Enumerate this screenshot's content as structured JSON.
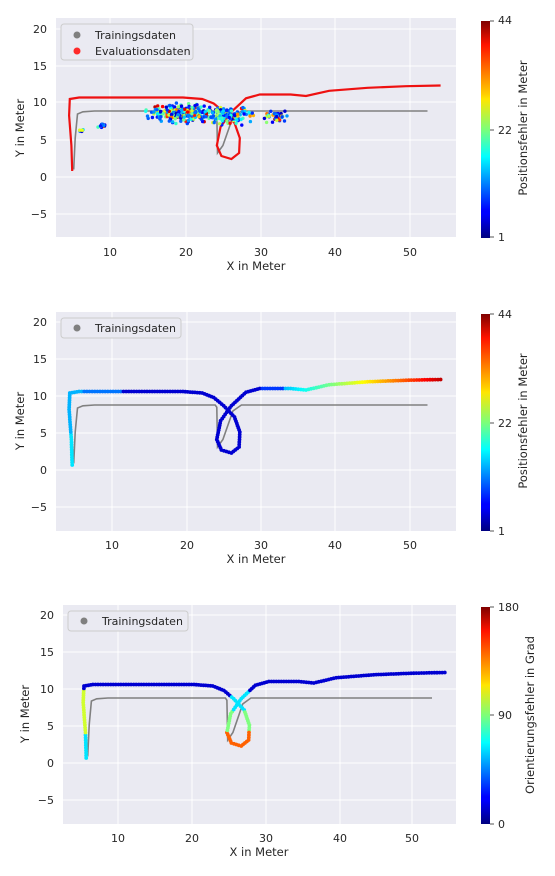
{
  "chart_data": [
    {
      "type": "scatter",
      "xlabel": "X in Meter",
      "ylabel": "Y in Meter",
      "xlim": [
        3.5,
        55.5
      ],
      "ylim": [
        -8.2,
        21.0
      ],
      "xticks": [
        "10",
        "20",
        "30",
        "40",
        "50"
      ],
      "yticks": [
        "20",
        "15",
        "10",
        "5",
        "0",
        "−5"
      ],
      "grid": true,
      "legend_position": "top-left",
      "legend": [
        {
          "label": "Trainingsdaten",
          "color": "#808080"
        },
        {
          "label": "Evaluationsdaten",
          "color": "#ff2a2a"
        }
      ],
      "colorbar": {
        "label": "Positionsfehler in Meter",
        "min": 1,
        "max": 44,
        "ticks": [
          "44",
          "22",
          "1"
        ]
      },
      "training_path": [
        [
          5.8,
          0.8
        ],
        [
          6.0,
          5.0
        ],
        [
          6.3,
          8.2
        ],
        [
          7.0,
          8.5
        ],
        [
          8.5,
          8.6
        ],
        [
          20,
          8.6
        ],
        [
          24.2,
          8.6
        ],
        [
          24.4,
          8.3
        ],
        [
          24.5,
          3.0
        ],
        [
          25.2,
          4.0
        ],
        [
          26.5,
          7.8
        ],
        [
          27.6,
          8.6
        ],
        [
          33,
          8.6
        ],
        [
          45,
          8.6
        ],
        [
          51.8,
          8.6
        ]
      ],
      "evaluation_path": [
        [
          5.6,
          0.6
        ],
        [
          5.5,
          4.0
        ],
        [
          5.2,
          8.0
        ],
        [
          5.3,
          10.2
        ],
        [
          6.5,
          10.4
        ],
        [
          15,
          10.4
        ],
        [
          20,
          10.4
        ],
        [
          22.5,
          10.2
        ],
        [
          24,
          9.6
        ],
        [
          25.3,
          8.5
        ],
        [
          26.7,
          7.0
        ],
        [
          27.4,
          5.0
        ],
        [
          27.3,
          3.0
        ],
        [
          26.3,
          2.2
        ],
        [
          25.0,
          2.6
        ],
        [
          24.4,
          4.0
        ],
        [
          24.9,
          6.5
        ],
        [
          26.3,
          8.5
        ],
        [
          28.2,
          10.3
        ],
        [
          30,
          10.8
        ],
        [
          34,
          10.8
        ],
        [
          36,
          10.6
        ],
        [
          39,
          11.3
        ],
        [
          44,
          11.7
        ],
        [
          49,
          11.9
        ],
        [
          53.5,
          12.0
        ]
      ]
    },
    {
      "type": "scatter",
      "xlabel": "X in Meter",
      "ylabel": "Y in Meter",
      "xlim": [
        3.5,
        55.5
      ],
      "ylim": [
        -8.2,
        21.0
      ],
      "xticks": [
        "10",
        "20",
        "30",
        "40",
        "50"
      ],
      "yticks": [
        "20",
        "15",
        "10",
        "5",
        "0",
        "−5"
      ],
      "grid": true,
      "legend_position": "top-left",
      "legend": [
        {
          "label": "Trainingsdaten",
          "color": "#808080"
        }
      ],
      "colorbar": {
        "label": "Positionsfehler in Meter",
        "min": 1,
        "max": 44,
        "ticks": [
          "44",
          "22",
          "1"
        ]
      },
      "training_path": [
        [
          5.8,
          0.8
        ],
        [
          6.0,
          5.0
        ],
        [
          6.3,
          8.2
        ],
        [
          7.0,
          8.5
        ],
        [
          8.5,
          8.6
        ],
        [
          20,
          8.6
        ],
        [
          24.2,
          8.6
        ],
        [
          24.4,
          8.3
        ],
        [
          24.5,
          3.0
        ],
        [
          25.2,
          4.0
        ],
        [
          26.5,
          7.8
        ],
        [
          27.6,
          8.6
        ],
        [
          33,
          8.6
        ],
        [
          45,
          8.6
        ],
        [
          51.8,
          8.6
        ]
      ],
      "prediction_path": [
        [
          5.6,
          0.6
        ],
        [
          5.5,
          4.0
        ],
        [
          5.2,
          8.0
        ],
        [
          5.3,
          10.2
        ],
        [
          6.5,
          10.4
        ],
        [
          15,
          10.4
        ],
        [
          20,
          10.4
        ],
        [
          22.5,
          10.2
        ],
        [
          24,
          9.6
        ],
        [
          25.3,
          8.5
        ],
        [
          26.7,
          7.0
        ],
        [
          27.4,
          5.0
        ],
        [
          27.3,
          3.0
        ],
        [
          26.3,
          2.2
        ],
        [
          25.0,
          2.6
        ],
        [
          24.4,
          4.0
        ],
        [
          24.9,
          6.5
        ],
        [
          26.3,
          8.5
        ],
        [
          28.2,
          10.3
        ],
        [
          30,
          10.8
        ],
        [
          34,
          10.8
        ],
        [
          36,
          10.6
        ],
        [
          39,
          11.3
        ],
        [
          44,
          11.7
        ],
        [
          49,
          11.9
        ],
        [
          53.5,
          12.0
        ]
      ]
    },
    {
      "type": "scatter",
      "xlabel": "X in Meter",
      "ylabel": "Y in Meter",
      "xlim": [
        2.5,
        55.0
      ],
      "ylim": [
        -8.2,
        21.0
      ],
      "xticks": [
        "10",
        "20",
        "30",
        "40",
        "50"
      ],
      "yticks": [
        "20",
        "15",
        "10",
        "5",
        "0",
        "−5"
      ],
      "grid": true,
      "legend_position": "top-left",
      "legend": [
        {
          "label": "Trainingsdaten",
          "color": "#808080"
        }
      ],
      "colorbar": {
        "label": "Orientierungsfehler in Grad",
        "min": 0,
        "max": 180,
        "ticks": [
          "180",
          "90",
          "0"
        ]
      },
      "training_path": [
        [
          5.8,
          0.8
        ],
        [
          6.0,
          5.0
        ],
        [
          6.3,
          8.2
        ],
        [
          7.0,
          8.5
        ],
        [
          8.5,
          8.6
        ],
        [
          20,
          8.6
        ],
        [
          24.2,
          8.6
        ],
        [
          24.4,
          8.3
        ],
        [
          24.5,
          3.0
        ],
        [
          25.2,
          4.0
        ],
        [
          26.5,
          7.8
        ],
        [
          27.6,
          8.6
        ],
        [
          33,
          8.6
        ],
        [
          45,
          8.6
        ],
        [
          51.8,
          8.6
        ]
      ],
      "prediction_path": [
        [
          5.6,
          0.6
        ],
        [
          5.5,
          4.0
        ],
        [
          5.2,
          8.0
        ],
        [
          5.3,
          10.2
        ],
        [
          6.5,
          10.4
        ],
        [
          15,
          10.4
        ],
        [
          20,
          10.4
        ],
        [
          22.5,
          10.2
        ],
        [
          24,
          9.6
        ],
        [
          25.3,
          8.5
        ],
        [
          26.7,
          7.0
        ],
        [
          27.4,
          5.0
        ],
        [
          27.3,
          3.0
        ],
        [
          26.3,
          2.2
        ],
        [
          25.0,
          2.6
        ],
        [
          24.4,
          4.0
        ],
        [
          24.9,
          6.5
        ],
        [
          26.3,
          8.5
        ],
        [
          28.2,
          10.3
        ],
        [
          30,
          10.8
        ],
        [
          34,
          10.8
        ],
        [
          36,
          10.6
        ],
        [
          39,
          11.3
        ],
        [
          44,
          11.7
        ],
        [
          49,
          11.9
        ],
        [
          53.5,
          12.0
        ]
      ]
    }
  ]
}
